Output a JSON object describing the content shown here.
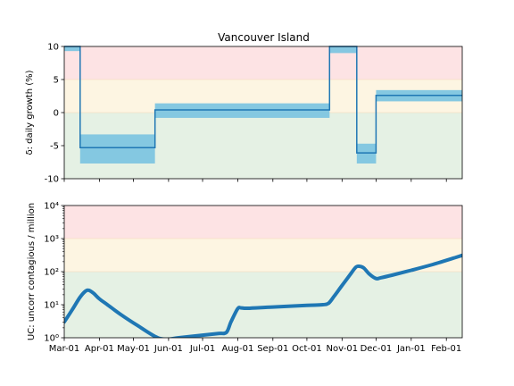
{
  "chart_data": [
    {
      "type": "line",
      "title": "Vancouver Island",
      "ylabel": "δ: daily growth (%)",
      "ylim": [
        -10,
        10
      ],
      "yticks": [
        10,
        5,
        0,
        -5,
        -10
      ],
      "bands": [
        {
          "from": 5,
          "to": 10,
          "color": "#fde3e4"
        },
        {
          "from": 0,
          "to": 5,
          "color": "#fdf5e2"
        },
        {
          "from": -10,
          "to": 0,
          "color": "#e5f1e4"
        }
      ],
      "band_line_color": "#f5d5b5",
      "line_color": "#1f77b4",
      "range_color": "#7ec5e0",
      "segments": [
        {
          "start": "2020-03-01",
          "end": "2020-03-15",
          "value": 10,
          "low": 9.3,
          "high": 10
        },
        {
          "start": "2020-03-15",
          "end": "2020-05-20",
          "value": -5.3,
          "low": -7.7,
          "high": -3.3
        },
        {
          "start": "2020-05-20",
          "end": "2020-10-21",
          "value": 0.4,
          "low": -0.8,
          "high": 1.4
        },
        {
          "start": "2020-10-21",
          "end": "2020-11-14",
          "value": 10,
          "low": 9.0,
          "high": 10
        },
        {
          "start": "2020-11-14",
          "end": "2020-12-01",
          "value": -6.1,
          "low": -7.7,
          "high": -4.7
        },
        {
          "start": "2020-12-01",
          "end": "2021-02-15",
          "value": 2.6,
          "low": 1.7,
          "high": 3.4
        }
      ]
    },
    {
      "type": "line",
      "ylabel": "UC: uncorr contagious / million",
      "yscale": "log",
      "ylim": [
        1,
        10000
      ],
      "yticks": [
        "10⁴",
        "10³",
        "10²",
        "10¹",
        "10⁰"
      ],
      "bands": [
        {
          "from": 1000,
          "to": 10000,
          "color": "#fde3e4"
        },
        {
          "from": 100,
          "to": 1000,
          "color": "#fdf5e2"
        },
        {
          "from": 1,
          "to": 100,
          "color": "#e5f1e4"
        }
      ],
      "line_color": "#1f77b4",
      "series": [
        {
          "x": [
            "2020-03-01",
            "2020-03-08",
            "2020-03-15",
            "2020-03-20",
            "2020-03-23",
            "2020-03-27",
            "2020-04-01",
            "2020-04-08",
            "2020-04-20",
            "2020-05-05",
            "2020-05-20",
            "2020-05-29",
            "2020-06-10",
            "2020-07-01",
            "2020-07-15",
            "2020-07-22",
            "2020-07-26",
            "2020-08-01",
            "2020-08-04",
            "2020-08-10",
            "2020-09-01",
            "2020-10-01",
            "2020-10-15",
            "2020-10-20",
            "2020-10-25",
            "2020-11-01",
            "2020-11-08",
            "2020-11-13",
            "2020-11-16",
            "2020-11-20",
            "2020-11-25",
            "2020-12-01",
            "2020-12-05",
            "2020-12-15",
            "2021-01-01",
            "2021-01-20",
            "2021-02-15"
          ],
          "y": [
            3,
            7,
            17,
            26,
            27,
            22,
            15,
            10,
            5,
            2.3,
            1.1,
            0.9,
            1.0,
            1.2,
            1.35,
            1.45,
            3.0,
            7.6,
            8.0,
            7.8,
            8.5,
            9.5,
            10,
            11,
            18,
            38,
            80,
            135,
            145,
            130,
            85,
            62,
            65,
            78,
            110,
            165,
            310
          ]
        }
      ]
    }
  ],
  "xaxis": {
    "start": "2020-03-01",
    "end": "2021-02-15",
    "ticks": [
      {
        "date": "2020-03-01",
        "label": "Mar-01"
      },
      {
        "date": "2020-04-01",
        "label": "Apr-01"
      },
      {
        "date": "2020-05-01",
        "label": "May-01"
      },
      {
        "date": "2020-06-01",
        "label": "Jun-01"
      },
      {
        "date": "2020-07-01",
        "label": "Jul-01"
      },
      {
        "date": "2020-08-01",
        "label": "Aug-01"
      },
      {
        "date": "2020-09-01",
        "label": "Sep-01"
      },
      {
        "date": "2020-10-01",
        "label": "Oct-01"
      },
      {
        "date": "2020-11-01",
        "label": "Nov-01"
      },
      {
        "date": "2020-12-01",
        "label": "Dec-01"
      },
      {
        "date": "2021-01-01",
        "label": "Jan-01"
      },
      {
        "date": "2021-02-01",
        "label": "Feb-01"
      }
    ]
  }
}
